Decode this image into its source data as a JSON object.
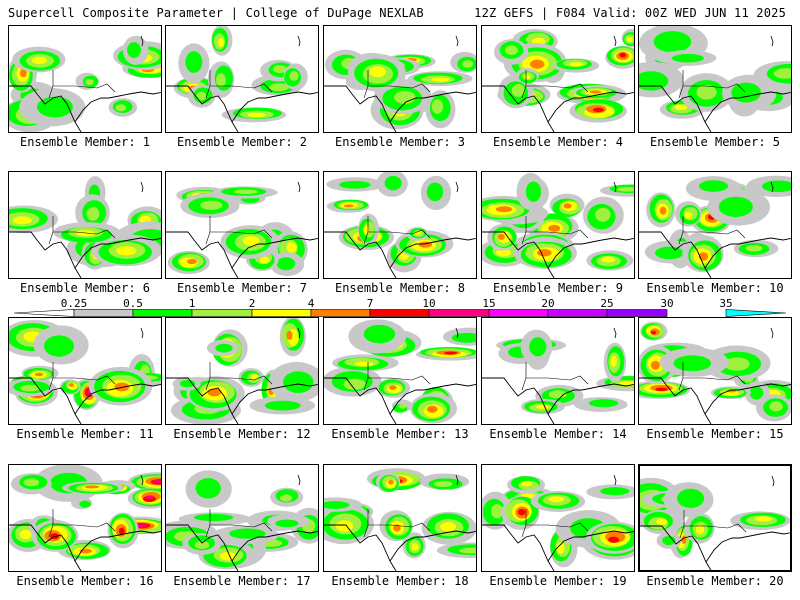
{
  "header": {
    "left": "Supercell Composite Parameter | College of DuPage NEXLAB",
    "right": "12Z GEFS | F084 Valid: 00Z WED JUN 11 2025"
  },
  "colorbar": {
    "colors": [
      "#ffffff",
      "#c8c8c8",
      "#00ff00",
      "#a0f040",
      "#ffff00",
      "#ff8000",
      "#ff0000",
      "#ff0080",
      "#ff00ff",
      "#c800ff",
      "#9600ff",
      "#00ffff"
    ],
    "labels": [
      "0.25",
      "0.5",
      "1",
      "2",
      "4",
      "7",
      "10",
      "15",
      "20",
      "25",
      "30",
      "35"
    ]
  },
  "members": [
    {
      "label": "Ensemble Member: 1",
      "selected": false
    },
    {
      "label": "Ensemble Member: 2",
      "selected": false
    },
    {
      "label": "Ensemble Member: 3",
      "selected": false
    },
    {
      "label": "Ensemble Member: 4",
      "selected": false
    },
    {
      "label": "Ensemble Member: 5",
      "selected": false
    },
    {
      "label": "Ensemble Member: 6",
      "selected": false
    },
    {
      "label": "Ensemble Member: 7",
      "selected": false
    },
    {
      "label": "Ensemble Member: 8",
      "selected": false
    },
    {
      "label": "Ensemble Member: 9",
      "selected": false
    },
    {
      "label": "Ensemble Member: 10",
      "selected": false
    },
    {
      "label": "Ensemble Member: 11",
      "selected": false
    },
    {
      "label": "Ensemble Member: 12",
      "selected": false
    },
    {
      "label": "Ensemble Member: 13",
      "selected": false
    },
    {
      "label": "Ensemble Member: 14",
      "selected": false
    },
    {
      "label": "Ensemble Member: 15",
      "selected": false
    },
    {
      "label": "Ensemble Member: 16",
      "selected": false
    },
    {
      "label": "Ensemble Member: 17",
      "selected": false
    },
    {
      "label": "Ensemble Member: 18",
      "selected": false
    },
    {
      "label": "Ensemble Member: 19",
      "selected": false
    },
    {
      "label": "Ensemble Member: 20",
      "selected": true
    }
  ]
}
